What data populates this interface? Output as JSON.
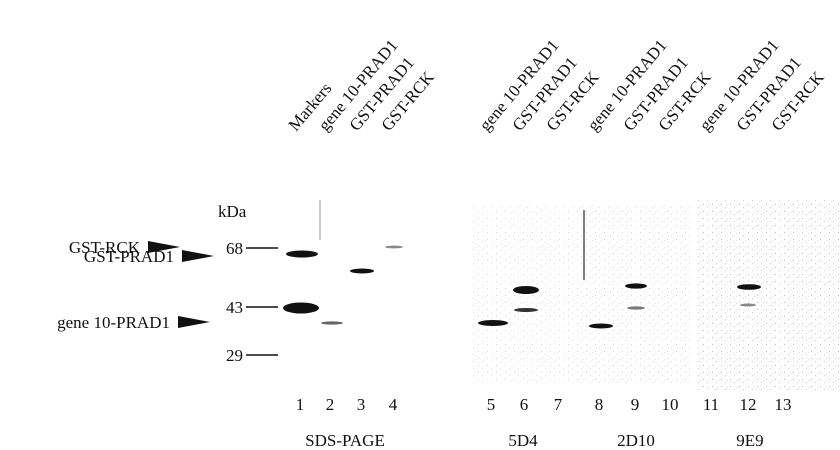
{
  "lane_headers": [
    "Markers",
    "gene 10-PRAD1",
    "GST-PRAD1",
    "GST-RCK",
    "gene 10-PRAD1",
    "GST-PRAD1",
    "GST-RCK",
    "gene 10-PRAD1",
    "GST-PRAD1",
    "GST-RCK",
    "gene 10-PRAD1",
    "GST-PRAD1",
    "GST-RCK"
  ],
  "unit": "kDa",
  "markers": [
    "68",
    "43",
    "29"
  ],
  "band_labels": [
    "GST-RCK",
    "GST-PRAD1",
    "gene 10-PRAD1"
  ],
  "lane_numbers": [
    "1",
    "2",
    "3",
    "4",
    "5",
    "6",
    "7",
    "8",
    "9",
    "10",
    "11",
    "12",
    "13"
  ],
  "groups": [
    "SDS-PAGE",
    "5D4",
    "2D10",
    "9E9"
  ]
}
